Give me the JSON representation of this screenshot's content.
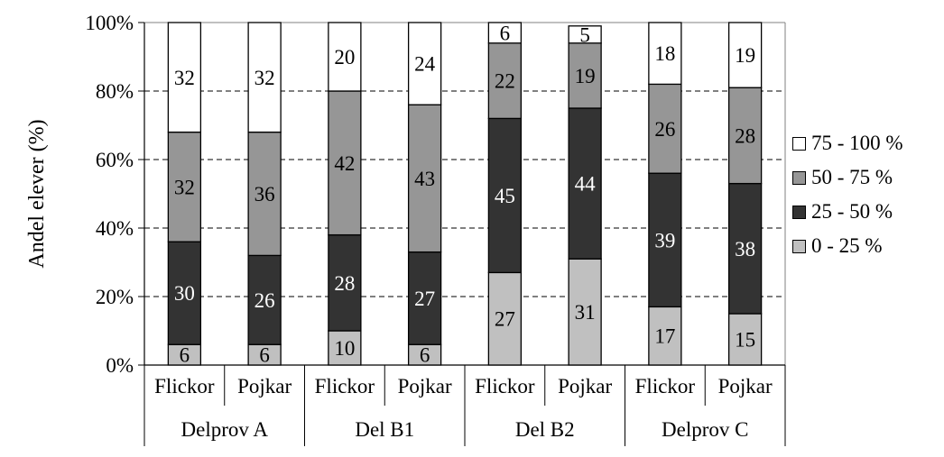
{
  "chart_data": {
    "type": "bar",
    "stacked": "percent",
    "ylabel": "Andel elever (%)",
    "ylim": [
      0,
      100
    ],
    "yticks": [
      "0%",
      "20%",
      "40%",
      "60%",
      "80%",
      "100%"
    ],
    "grid": "dashed horizontal",
    "legend_position": "right",
    "categories": [
      {
        "label": "Flickor",
        "group": "Delprov A"
      },
      {
        "label": "Pojkar",
        "group": "Delprov A"
      },
      {
        "label": "Flickor",
        "group": "Del B1"
      },
      {
        "label": "Pojkar",
        "group": "Del B1"
      },
      {
        "label": "Flickor",
        "group": "Del B2"
      },
      {
        "label": "Pojkar",
        "group": "Del B2"
      },
      {
        "label": "Flickor",
        "group": "Delprov C"
      },
      {
        "label": "Pojkar",
        "group": "Delprov C"
      }
    ],
    "groups": [
      "Delprov A",
      "Del B1",
      "Del B2",
      "Delprov C"
    ],
    "series": [
      {
        "name": "0 - 25 %",
        "color": "#c0c0c0",
        "label_color": "#000000",
        "values": [
          6,
          6,
          10,
          6,
          27,
          31,
          17,
          15
        ]
      },
      {
        "name": "25 - 50 %",
        "color": "#333333",
        "label_color": "#ffffff",
        "values": [
          30,
          26,
          28,
          27,
          45,
          44,
          39,
          38
        ]
      },
      {
        "name": "50 - 75 %",
        "color": "#969696",
        "label_color": "#000000",
        "values": [
          32,
          36,
          42,
          43,
          22,
          19,
          26,
          28
        ]
      },
      {
        "name": "75 - 100 %",
        "color": "#ffffff",
        "label_color": "#000000",
        "values": [
          32,
          32,
          20,
          24,
          6,
          5,
          18,
          19
        ]
      }
    ],
    "legend_order": [
      "75 - 100 %",
      "50 - 75 %",
      "25 - 50 %",
      "0 - 25 %"
    ]
  }
}
